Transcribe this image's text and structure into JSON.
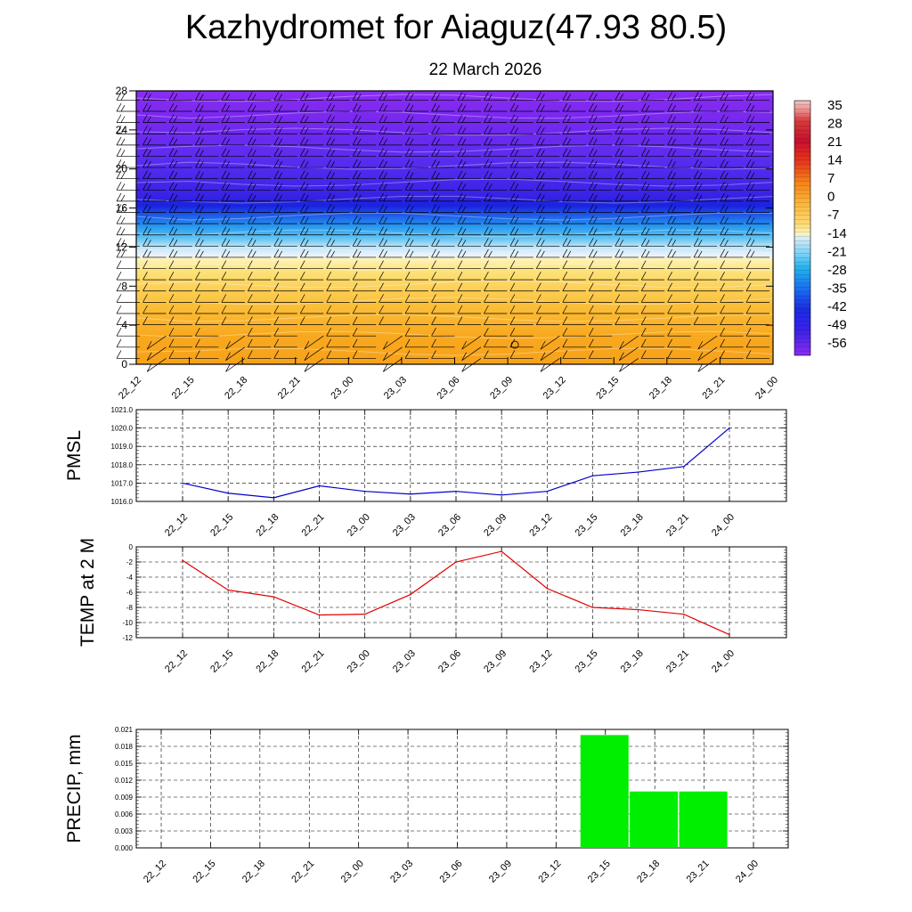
{
  "title": "Kazhydromet for Aiaguz(47.93 80.5)",
  "subtitle": "22 March 2026",
  "colors": {
    "pmsl_line": "#0000cc",
    "temp_line": "#e00000",
    "precip_bar": "#00ee00",
    "frame": "#000000"
  },
  "time_labels": [
    "22_12",
    "22_15",
    "22_18",
    "22_21",
    "23_00",
    "23_03",
    "23_06",
    "23_09",
    "23_12",
    "23_15",
    "23_18",
    "23_21",
    "24_00"
  ],
  "chart_data": [
    {
      "type": "heatmap",
      "name": "cross-section",
      "x": [
        "22_12",
        "22_15",
        "22_18",
        "22_21",
        "23_00",
        "23_03",
        "23_06",
        "23_09",
        "23_12",
        "23_15",
        "23_18",
        "23_21",
        "24_00"
      ],
      "ylim": [
        0,
        28
      ],
      "yticks": [
        "0",
        "4",
        "8",
        "12",
        "16",
        "20",
        "24",
        "28"
      ],
      "colorbar_labels": [
        "35",
        "28",
        "21",
        "14",
        "7",
        "0",
        "-7",
        "-14",
        "-21",
        "-28",
        "-35",
        "-42",
        "-49",
        "-56"
      ],
      "levels_temp": [
        {
          "y": 0,
          "v": -2
        },
        {
          "y": 3,
          "v": -4
        },
        {
          "y": 6,
          "v": -6
        },
        {
          "y": 9,
          "v": -8
        },
        {
          "y": 11,
          "v": -14
        },
        {
          "y": 12.5,
          "v": -22
        },
        {
          "y": 14,
          "v": -30
        },
        {
          "y": 16,
          "v": -42
        },
        {
          "y": 17.5,
          "v": -55
        },
        {
          "y": 20,
          "v": -52
        },
        {
          "y": 24,
          "v": -56
        },
        {
          "y": 28,
          "v": -60
        }
      ]
    },
    {
      "type": "line",
      "name": "pmsl",
      "ylabel": "PMSL",
      "x": [
        "22_12",
        "22_15",
        "22_18",
        "22_21",
        "23_00",
        "23_03",
        "23_06",
        "23_09",
        "23_12",
        "23_15",
        "23_18",
        "23_21",
        "24_00"
      ],
      "values": [
        1017.0,
        1016.45,
        1016.2,
        1016.85,
        1016.55,
        1016.4,
        1016.55,
        1016.35,
        1016.55,
        1017.4,
        1017.6,
        1017.9,
        1020.0
      ],
      "ylim": [
        1016.0,
        1021.0
      ],
      "yticks": [
        "1016.0",
        "1017.0",
        "1018.0",
        "1019.0",
        "1020.0",
        "1021.0"
      ]
    },
    {
      "type": "line",
      "name": "temp",
      "ylabel": "TEMP at 2 M",
      "x": [
        "22_12",
        "22_15",
        "22_18",
        "22_21",
        "23_00",
        "23_03",
        "23_06",
        "23_09",
        "23_12",
        "23_15",
        "23_18",
        "23_21",
        "24_00"
      ],
      "values": [
        -1.8,
        -5.7,
        -6.6,
        -9.0,
        -8.9,
        -6.3,
        -2.0,
        -0.6,
        -5.5,
        -8.0,
        -8.3,
        -8.9,
        -11.6
      ],
      "ylim": [
        -12,
        0
      ],
      "yticks": [
        "-12",
        "-10",
        "-8",
        "-6",
        "-4",
        "-2",
        "0"
      ]
    },
    {
      "type": "bar",
      "name": "precip",
      "ylabel": "PRECIP, mm",
      "x": [
        "22_12",
        "22_15",
        "22_18",
        "22_21",
        "23_00",
        "23_03",
        "23_06",
        "23_09",
        "23_12",
        "23_15",
        "23_18",
        "23_21",
        "24_00"
      ],
      "values": [
        0,
        0,
        0,
        0,
        0,
        0,
        0,
        0,
        0,
        0.02,
        0.01,
        0.01,
        0
      ],
      "ylim": [
        0,
        0.021
      ],
      "yticks": [
        "0.000",
        "0.003",
        "0.006",
        "0.009",
        "0.012",
        "0.015",
        "0.018",
        "0.021"
      ]
    }
  ]
}
